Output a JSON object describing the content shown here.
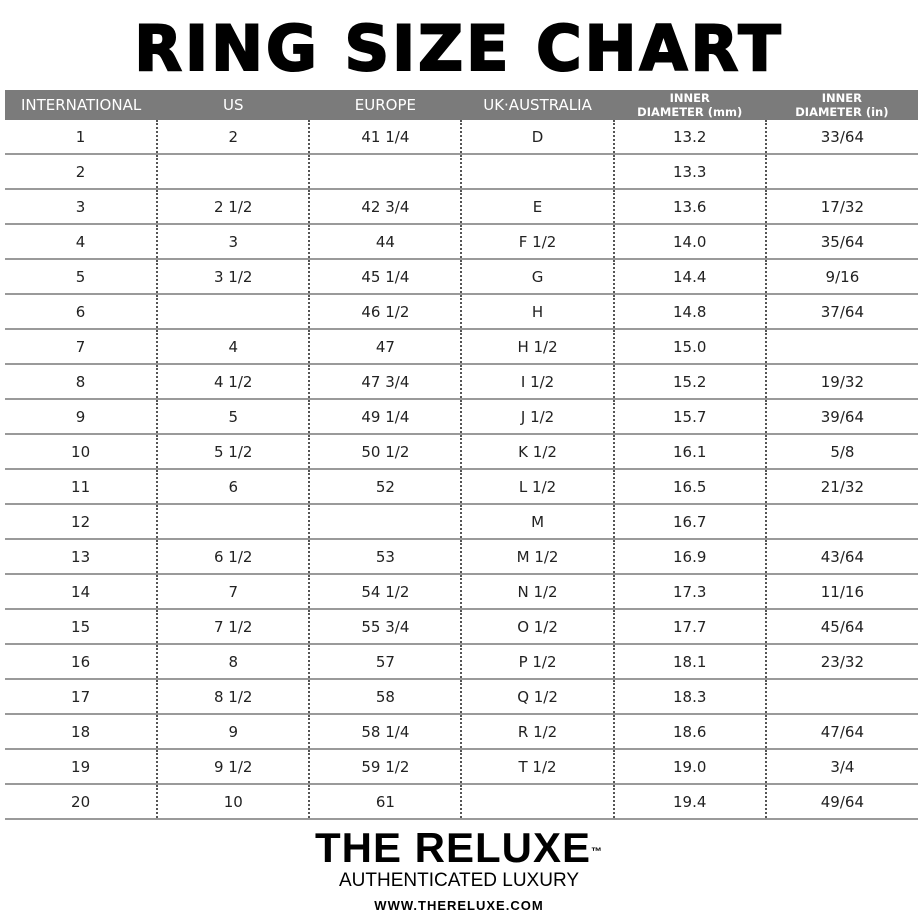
{
  "title": "RING SIZE CHART",
  "columns": [
    {
      "label": "INTERNATIONAL",
      "small": false
    },
    {
      "label": "US",
      "small": false
    },
    {
      "label": "EUROPE",
      "small": false
    },
    {
      "label": "UK·AUSTRALIA",
      "small": false
    },
    {
      "label": "INNER\nDIAMETER (mm)",
      "small": true
    },
    {
      "label": "INNER\nDIAMETER (in)",
      "small": true
    }
  ],
  "rows": [
    [
      "1",
      "2",
      "41 1/4",
      "D",
      "13.2",
      "33/64"
    ],
    [
      "2",
      "",
      "",
      "",
      "13.3",
      ""
    ],
    [
      "3",
      "2 1/2",
      "42 3/4",
      "E",
      "13.6",
      "17/32"
    ],
    [
      "4",
      "3",
      "44",
      "F 1/2",
      "14.0",
      "35/64"
    ],
    [
      "5",
      "3 1/2",
      "45 1/4",
      "G",
      "14.4",
      "9/16"
    ],
    [
      "6",
      "",
      "46 1/2",
      "H",
      "14.8",
      "37/64"
    ],
    [
      "7",
      "4",
      "47",
      "H 1/2",
      "15.0",
      ""
    ],
    [
      "8",
      "4 1/2",
      "47 3/4",
      "I 1/2",
      "15.2",
      "19/32"
    ],
    [
      "9",
      "5",
      "49 1/4",
      "J 1/2",
      "15.7",
      "39/64"
    ],
    [
      "10",
      "5 1/2",
      "50 1/2",
      "K 1/2",
      "16.1",
      "5/8"
    ],
    [
      "11",
      "6",
      "52",
      "L 1/2",
      "16.5",
      "21/32"
    ],
    [
      "12",
      "",
      "",
      "M",
      "16.7",
      ""
    ],
    [
      "13",
      "6 1/2",
      "53",
      "M 1/2",
      "16.9",
      "43/64"
    ],
    [
      "14",
      "7",
      "54 1/2",
      "N 1/2",
      "17.3",
      "11/16"
    ],
    [
      "15",
      "7 1/2",
      "55 3/4",
      "O 1/2",
      "17.7",
      "45/64"
    ],
    [
      "16",
      "8",
      "57",
      "P 1/2",
      "18.1",
      "23/32"
    ],
    [
      "17",
      "8 1/2",
      "58",
      "Q 1/2",
      "18.3",
      ""
    ],
    [
      "18",
      "9",
      "58 1/4",
      "R 1/2",
      "18.6",
      "47/64"
    ],
    [
      "19",
      "9 1/2",
      "59 1/2",
      "T 1/2",
      "19.0",
      "3/4"
    ],
    [
      "20",
      "10",
      "61",
      "",
      "19.4",
      "49/64"
    ]
  ],
  "footer": {
    "brand": "THE RELUXE",
    "trademark": "™",
    "tagline": "AUTHENTICATED LUXURY",
    "url": "WWW.THERELUXE.COM"
  },
  "colors": {
    "header_bg": "#7b7b7b",
    "header_text": "#ffffff",
    "row_line": "#9a9a9a"
  }
}
